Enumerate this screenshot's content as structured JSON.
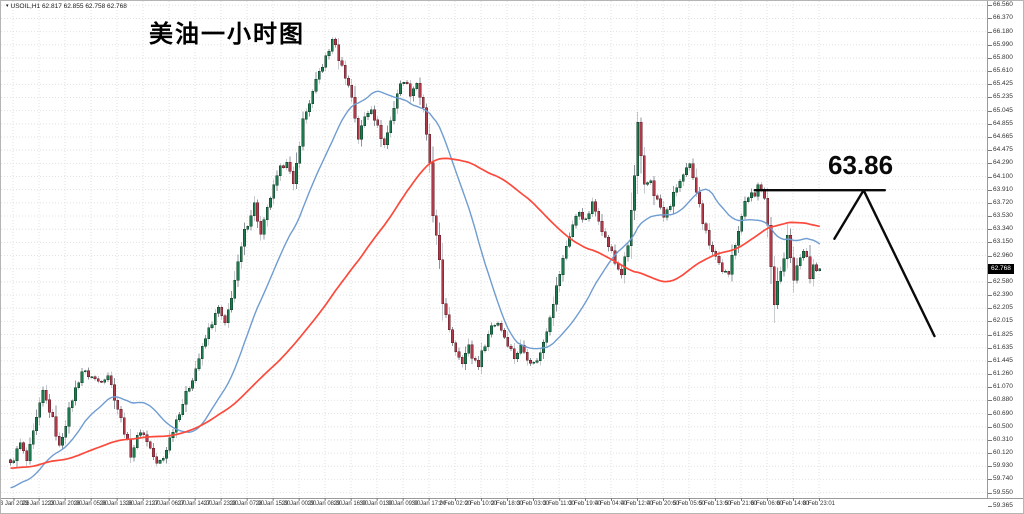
{
  "window": {
    "marker_icon": "▾",
    "symbol_line": "USOIL,H1  62.817 62.855 62.758 62.768"
  },
  "chart_data": {
    "type": "candlestick",
    "title": "美油一小时图",
    "symbol": "USOIL",
    "timeframe": "H1",
    "ohlc_readout": {
      "open": 62.817,
      "high": 62.855,
      "low": 62.758,
      "close": 62.768
    },
    "current_price_tag": "62.768",
    "y_axis": {
      "top_value": 66.56,
      "step": 0.1895,
      "labels": [
        "66.560",
        "66.370",
        "66.180",
        "65.990",
        "65.800",
        "65.610",
        "65.425",
        "65.235",
        "65.045",
        "64.855",
        "64.665",
        "64.475",
        "64.290",
        "64.100",
        "63.910",
        "63.720",
        "63.530",
        "63.340",
        "63.150",
        "62.960",
        "62.770",
        "62.580",
        "62.390",
        "62.205",
        "62.015",
        "61.825",
        "61.635",
        "61.445",
        "61.260",
        "61.070",
        "60.880",
        "60.690",
        "60.500",
        "60.310",
        "60.120",
        "59.930",
        "59.740",
        "59.550",
        "59.365"
      ]
    },
    "x_axis": {
      "labels": [
        "23 Jan 2026",
        "23 Jan 12:00",
        "23 Jan 20:00",
        "26 Jan 05:00",
        "26 Jan 13:00",
        "26 Jan 21:00",
        "27 Jan 06:00",
        "27 Jan 14:00",
        "27 Jan 23:00",
        "28 Jan 07:00",
        "28 Jan 15:00",
        "29 Jan 00:00",
        "29 Jan 08:00",
        "29 Jan 16:00",
        "30 Jan 01:00",
        "30 Jan 09:00",
        "30 Jan 17:00",
        "2 Feb 02:00",
        "2 Feb 10:00",
        "2 Feb 18:00",
        "3 Feb 03:00",
        "3 Feb 11:00",
        "3 Feb 19:00",
        "4 Feb 04:00",
        "4 Feb 12:00",
        "4 Feb 20:00",
        "5 Feb 05:00",
        "5 Feb 13:00",
        "5 Feb 21:00",
        "6 Feb 06:00",
        "6 Feb 14:00",
        "8 Feb 23:01"
      ]
    },
    "candle_count": 250,
    "price_path": [
      [
        0,
        59.95
      ],
      [
        3,
        60.25
      ],
      [
        5,
        60.0
      ],
      [
        10,
        61.0
      ],
      [
        13,
        60.6
      ],
      [
        15,
        60.2
      ],
      [
        19,
        60.9
      ],
      [
        22,
        61.3
      ],
      [
        27,
        61.15
      ],
      [
        30,
        61.25
      ],
      [
        34,
        60.6
      ],
      [
        37,
        60.1
      ],
      [
        40,
        60.45
      ],
      [
        42,
        60.3
      ],
      [
        45,
        59.95
      ],
      [
        47,
        60.05
      ],
      [
        51,
        60.6
      ],
      [
        56,
        61.2
      ],
      [
        61,
        61.9
      ],
      [
        64,
        62.2
      ],
      [
        66,
        61.95
      ],
      [
        69,
        62.6
      ],
      [
        72,
        63.3
      ],
      [
        75,
        63.7
      ],
      [
        77,
        63.25
      ],
      [
        80,
        63.8
      ],
      [
        83,
        64.2
      ],
      [
        85,
        64.35
      ],
      [
        87,
        63.95
      ],
      [
        90,
        64.9
      ],
      [
        93,
        65.3
      ],
      [
        95,
        65.6
      ],
      [
        98,
        65.9
      ],
      [
        99,
        66.1
      ],
      [
        101,
        65.8
      ],
      [
        103,
        65.55
      ],
      [
        105,
        65.25
      ],
      [
        107,
        64.65
      ],
      [
        109,
        64.95
      ],
      [
        111,
        65.1
      ],
      [
        113,
        64.8
      ],
      [
        115,
        64.55
      ],
      [
        117,
        64.9
      ],
      [
        119,
        65.3
      ],
      [
        121,
        65.5
      ],
      [
        123,
        65.3
      ],
      [
        125,
        65.45
      ],
      [
        127,
        65.05
      ],
      [
        129,
        64.3
      ],
      [
        130,
        63.5
      ],
      [
        132,
        62.9
      ],
      [
        133,
        62.3
      ],
      [
        135,
        61.85
      ],
      [
        137,
        61.6
      ],
      [
        139,
        61.45
      ],
      [
        141,
        61.65
      ],
      [
        142,
        61.5
      ],
      [
        144,
        61.4
      ],
      [
        146,
        61.7
      ],
      [
        148,
        61.95
      ],
      [
        150,
        62.0
      ],
      [
        152,
        61.8
      ],
      [
        154,
        61.6
      ],
      [
        155,
        61.5
      ],
      [
        157,
        61.65
      ],
      [
        159,
        61.5
      ],
      [
        161,
        61.4
      ],
      [
        163,
        61.55
      ],
      [
        165,
        61.9
      ],
      [
        167,
        62.3
      ],
      [
        169,
        62.7
      ],
      [
        171,
        63.1
      ],
      [
        173,
        63.4
      ],
      [
        175,
        63.6
      ],
      [
        177,
        63.45
      ],
      [
        179,
        63.7
      ],
      [
        181,
        63.5
      ],
      [
        183,
        63.2
      ],
      [
        185,
        63.0
      ],
      [
        186,
        62.85
      ],
      [
        188,
        62.7
      ],
      [
        190,
        63.1
      ],
      [
        192,
        64.1
      ],
      [
        193,
        64.85
      ],
      [
        194,
        64.35
      ],
      [
        195,
        63.95
      ],
      [
        197,
        64.05
      ],
      [
        198,
        63.85
      ],
      [
        200,
        63.65
      ],
      [
        201,
        63.5
      ],
      [
        203,
        63.7
      ],
      [
        205,
        63.95
      ],
      [
        207,
        64.1
      ],
      [
        209,
        64.25
      ],
      [
        210,
        64.05
      ],
      [
        212,
        63.75
      ],
      [
        213,
        63.45
      ],
      [
        215,
        63.15
      ],
      [
        217,
        62.95
      ],
      [
        219,
        62.75
      ],
      [
        221,
        62.65
      ],
      [
        222,
        62.95
      ],
      [
        224,
        63.35
      ],
      [
        226,
        63.7
      ],
      [
        228,
        63.9
      ],
      [
        229,
        63.85
      ],
      [
        230,
        63.95
      ],
      [
        232,
        63.8
      ],
      [
        233,
        63.4
      ],
      [
        234,
        62.8
      ],
      [
        235,
        62.3
      ],
      [
        236,
        62.6
      ],
      [
        238,
        62.9
      ],
      [
        239,
        63.25
      ],
      [
        240,
        62.9
      ],
      [
        241,
        62.6
      ],
      [
        242,
        62.8
      ],
      [
        244,
        63.05
      ],
      [
        245,
        62.9
      ],
      [
        246,
        62.65
      ],
      [
        247,
        62.8
      ],
      [
        249,
        62.768
      ]
    ],
    "moving_averages": [
      {
        "name": "fast-ma",
        "color": "#6f9cd1"
      },
      {
        "name": "slow-ma",
        "color": "#fb4a3c"
      }
    ],
    "objects": {
      "resistance_line": {
        "label": "63.86",
        "level": 63.9,
        "from_k": 229,
        "to_k": 269
      },
      "check_lines": [
        [
          [
            253.5,
            63.2
          ],
          [
            262.5,
            63.9
          ]
        ],
        [
          [
            262.5,
            63.9
          ],
          [
            284.3,
            61.8
          ]
        ]
      ]
    },
    "colors": {
      "up_candle": "#1d7a4e",
      "up_border": "#0d3f27",
      "down_candle": "#b13a4a",
      "down_border": "#5f1d28",
      "wick": "#8f959c",
      "grid": "#e2e2e2",
      "annotation": "#0a0a0a",
      "price_tag_bg": "#000000",
      "price_tag_text": "#ffffff"
    }
  }
}
